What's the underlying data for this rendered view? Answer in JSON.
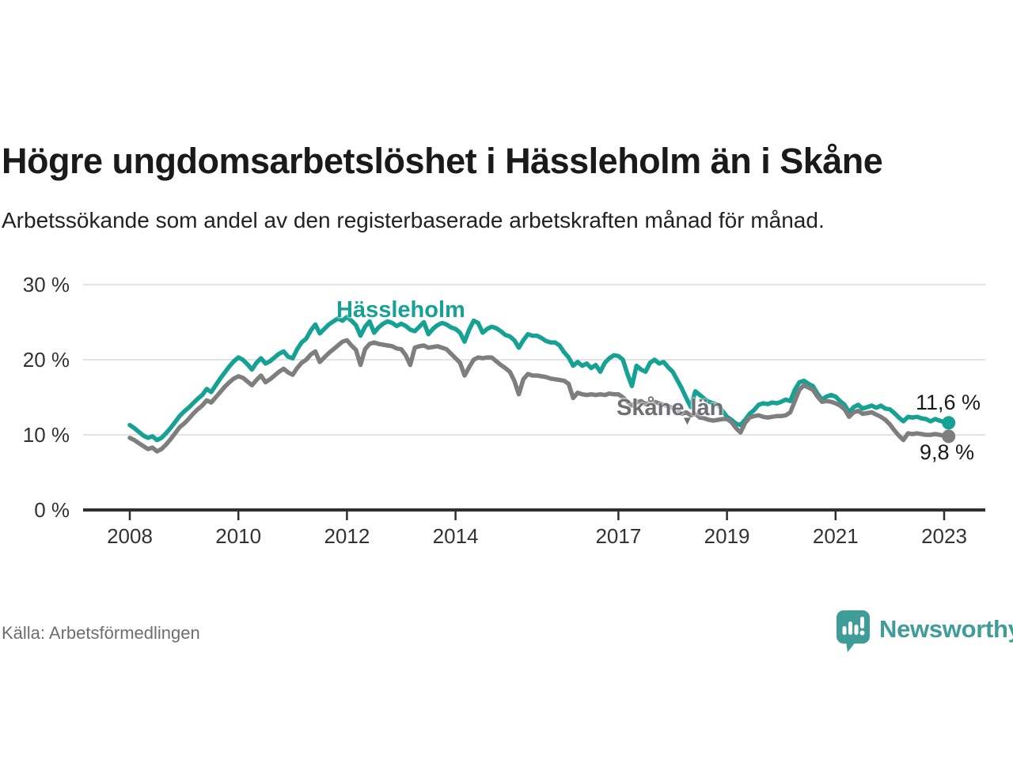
{
  "header": {
    "title": "Högre ungdomsarbetslöshet i Hässleholm än i Skåne",
    "subtitle": "Arbetssökande som andel av den registerbaserade arbetskraften månad för månad."
  },
  "chart": {
    "y_axis": {
      "ticks": [
        {
          "label": "0 %",
          "value": 0
        },
        {
          "label": "10 %",
          "value": 10
        },
        {
          "label": "20 %",
          "value": 20
        },
        {
          "label": "30 %",
          "value": 30
        }
      ]
    },
    "x_axis": {
      "ticks": [
        2008,
        2010,
        2012,
        2014,
        2017,
        2019,
        2021,
        2023
      ]
    },
    "annotations": {
      "hassleholm_label": "Hässleholm",
      "skane_label": "Skåne län",
      "skane_arrow_icon": "▼",
      "hassleholm_end_value": "11,6 %",
      "skane_end_value": "9,8 %"
    },
    "colors": {
      "hassleholm_line": "#16a195",
      "skane_line": "#7e7e7e",
      "gridline": "#e3e3e3",
      "axis": "#2f2f2f",
      "brand_teal": "#3e9d98"
    }
  },
  "chart_data": {
    "type": "line",
    "title": "Högre ungdomsarbetslöshet i Hässleholm än i Skåne",
    "subtitle": "Arbetssökande som andel av den registerbaserade arbetskraften månad för månad.",
    "x_start_year": 2008,
    "x_step_months": 1,
    "x_last_point": "2023-02",
    "ylim": [
      0,
      30
    ],
    "y_unit": "%",
    "grid": "horizontal",
    "legend_position": "inline-labels",
    "series": [
      {
        "name": "Hässleholm",
        "color": "#16a195",
        "end_label": "11,6 %",
        "end_value": 11.6,
        "values": [
          11.3,
          10.9,
          10.4,
          9.9,
          9.6,
          9.8,
          9.3,
          9.6,
          10.2,
          10.9,
          11.7,
          12.5,
          13.1,
          13.6,
          14.2,
          14.8,
          15.3,
          16.1,
          15.7,
          16.6,
          17.5,
          18.3,
          19.1,
          19.8,
          20.3,
          20.0,
          19.4,
          18.7,
          19.6,
          20.2,
          19.5,
          19.8,
          20.3,
          20.8,
          21.1,
          20.4,
          20.2,
          21.4,
          22.3,
          22.8,
          23.9,
          24.7,
          23.5,
          24.1,
          24.7,
          25.1,
          25.5,
          25.2,
          25.7,
          25.2,
          24.6,
          23.2,
          24.4,
          25.1,
          23.6,
          24.3,
          24.8,
          25.1,
          24.9,
          24.5,
          24.8,
          24.5,
          24.0,
          23.8,
          24.4,
          25.0,
          23.4,
          24.1,
          24.6,
          24.9,
          24.7,
          24.3,
          24.1,
          23.6,
          22.4,
          24.0,
          25.2,
          24.9,
          23.6,
          24.1,
          24.4,
          24.2,
          23.8,
          23.3,
          23.1,
          22.6,
          21.6,
          22.6,
          23.4,
          23.2,
          23.2,
          22.9,
          22.5,
          22.3,
          22.3,
          21.9,
          21.0,
          20.3,
          19.2,
          19.7,
          19.2,
          19.5,
          18.9,
          19.3,
          18.4,
          19.6,
          20.2,
          20.6,
          20.5,
          20.0,
          18.1,
          16.5,
          19.2,
          18.7,
          18.4,
          19.6,
          20.0,
          19.5,
          19.7,
          19.0,
          18.4,
          17.3,
          16.2,
          14.9,
          13.7,
          15.8,
          15.3,
          14.8,
          14.4,
          14.2,
          14.0,
          13.2,
          12.4,
          12.0,
          11.5,
          11.3,
          12.0,
          12.8,
          13.3,
          14.0,
          14.2,
          14.1,
          14.3,
          14.2,
          14.4,
          14.7,
          14.5,
          16.0,
          17.0,
          17.2,
          16.8,
          16.5,
          15.5,
          14.7,
          15.1,
          15.3,
          15.1,
          14.5,
          14.0,
          13.0,
          13.7,
          14.0,
          13.5,
          13.7,
          13.9,
          13.6,
          13.9,
          13.5,
          13.4,
          12.9,
          12.3,
          11.8,
          12.4,
          12.3,
          12.4,
          12.2,
          12.1,
          11.8,
          12.1,
          11.9,
          11.7,
          11.6
        ]
      },
      {
        "name": "Skåne län",
        "color": "#7e7e7e",
        "end_label": "9,8 %",
        "end_value": 9.8,
        "values": [
          9.6,
          9.3,
          8.9,
          8.5,
          8.1,
          8.3,
          7.8,
          8.1,
          8.7,
          9.4,
          10.2,
          11.0,
          11.5,
          12.1,
          12.8,
          13.4,
          13.9,
          14.6,
          14.3,
          15.0,
          15.7,
          16.4,
          17.0,
          17.5,
          17.8,
          17.6,
          17.1,
          16.6,
          17.3,
          17.9,
          17.0,
          17.4,
          17.9,
          18.4,
          18.8,
          18.3,
          18.0,
          18.9,
          19.6,
          20.0,
          20.7,
          21.1,
          19.7,
          20.3,
          20.9,
          21.4,
          21.9,
          22.4,
          22.6,
          21.9,
          21.3,
          19.3,
          21.4,
          22.1,
          22.3,
          22.1,
          22.0,
          21.9,
          21.8,
          21.5,
          21.4,
          20.6,
          19.3,
          21.6,
          21.8,
          21.9,
          21.6,
          21.7,
          21.8,
          21.6,
          21.4,
          20.8,
          20.2,
          19.6,
          17.9,
          19.0,
          20.0,
          20.3,
          20.2,
          20.3,
          20.3,
          19.8,
          19.3,
          18.9,
          18.4,
          17.2,
          15.4,
          17.4,
          18.1,
          17.9,
          17.9,
          17.8,
          17.7,
          17.5,
          17.4,
          17.3,
          17.2,
          16.8,
          14.9,
          15.6,
          15.4,
          15.3,
          15.4,
          15.3,
          15.4,
          15.3,
          15.5,
          15.4,
          15.4,
          15.0,
          14.4,
          13.9,
          14.3,
          14.5,
          14.1,
          14.3,
          14.4,
          14.2,
          14.0,
          13.8,
          13.6,
          13.3,
          12.8,
          13.0,
          12.6,
          12.8,
          12.3,
          12.2,
          12.0,
          11.9,
          12.0,
          12.1,
          12.1,
          11.7,
          10.9,
          10.3,
          11.6,
          12.3,
          12.5,
          12.6,
          12.4,
          12.3,
          12.4,
          12.5,
          12.5,
          12.6,
          13.0,
          14.5,
          16.0,
          16.6,
          16.3,
          16.0,
          15.1,
          14.4,
          14.5,
          14.4,
          14.2,
          13.9,
          13.4,
          12.4,
          13.0,
          13.2,
          12.8,
          12.9,
          13.0,
          12.7,
          12.4,
          12.0,
          11.4,
          10.6,
          9.9,
          9.3,
          10.2,
          10.1,
          10.2,
          10.1,
          10.0,
          10.0,
          10.1,
          10.0,
          9.9,
          9.8
        ]
      }
    ]
  },
  "footer": {
    "source": "Källa: Arbetsförmedlingen",
    "brand": "Newsworthy"
  }
}
